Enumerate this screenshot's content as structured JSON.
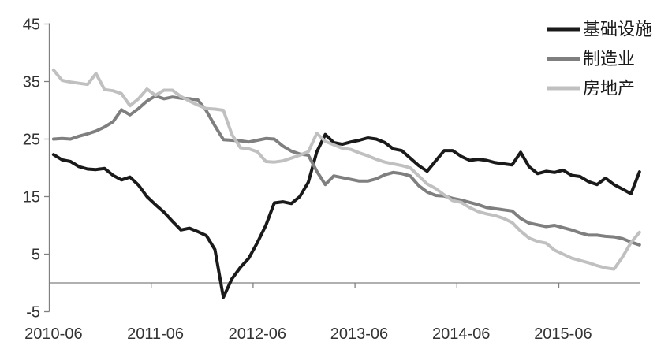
{
  "chart_data": {
    "type": "line",
    "title": "",
    "x_tick_labels": [
      "2010-06",
      "2011-06",
      "2012-06",
      "2013-06",
      "2014-06",
      "2015-06"
    ],
    "yticks": [
      45,
      35,
      25,
      15,
      5,
      -5
    ],
    "ylim": [
      -5,
      45
    ],
    "grid": false,
    "legend_position": "top-right",
    "axis_color": "#808080",
    "label_color": "#333333",
    "background_color": "#ffffff",
    "categories": [
      "2010-06",
      "2010-07",
      "2010-08",
      "2010-09",
      "2010-10",
      "2010-11",
      "2010-12",
      "2011-01",
      "2011-02",
      "2011-03",
      "2011-04",
      "2011-05",
      "2011-06",
      "2011-07",
      "2011-08",
      "2011-09",
      "2011-10",
      "2011-11",
      "2011-12",
      "2012-01",
      "2012-02",
      "2012-03",
      "2012-04",
      "2012-05",
      "2012-06",
      "2012-07",
      "2012-08",
      "2012-09",
      "2012-10",
      "2012-11",
      "2012-12",
      "2013-01",
      "2013-02",
      "2013-03",
      "2013-04",
      "2013-05",
      "2013-06",
      "2013-07",
      "2013-08",
      "2013-09",
      "2013-10",
      "2013-11",
      "2013-12",
      "2014-01",
      "2014-02",
      "2014-03",
      "2014-04",
      "2014-05",
      "2014-06",
      "2014-07",
      "2014-08",
      "2014-09",
      "2014-10",
      "2014-11",
      "2014-12",
      "2015-01",
      "2015-02",
      "2015-03",
      "2015-04",
      "2015-05",
      "2015-06",
      "2015-07",
      "2015-08",
      "2015-09",
      "2015-10",
      "2015-11",
      "2015-12",
      "2016-01",
      "2016-02",
      "2016-03"
    ],
    "series": [
      {
        "name": "基础设施",
        "key": "infrastructure",
        "color": "#1a1a1a",
        "line_width": 4,
        "values": [
          22.3,
          21.4,
          21.1,
          20.2,
          19.8,
          19.7,
          19.9,
          18.7,
          17.9,
          18.4,
          17.0,
          15.0,
          13.6,
          12.3,
          10.7,
          9.2,
          9.5,
          8.9,
          8.2,
          5.8,
          -2.5,
          0.7,
          2.7,
          4.3,
          7.0,
          10.0,
          13.9,
          14.1,
          13.8,
          15.0,
          17.5,
          22.8,
          25.8,
          24.4,
          24.1,
          24.5,
          24.8,
          25.2,
          25.0,
          24.4,
          23.3,
          23.0,
          21.7,
          20.4,
          19.4,
          21.2,
          23.0,
          23.0,
          22.0,
          21.3,
          21.5,
          21.3,
          20.9,
          20.7,
          20.5,
          22.7,
          20.2,
          19.0,
          19.4,
          19.2,
          19.6,
          18.7,
          18.5,
          17.6,
          17.1,
          18.2,
          17.1,
          16.3,
          15.5,
          19.3
        ]
      },
      {
        "name": "制造业",
        "key": "manufacturing",
        "color": "#7f7f7f",
        "line_width": 4,
        "values": [
          25.0,
          25.1,
          25.0,
          25.5,
          25.9,
          26.4,
          27.1,
          28.0,
          30.1,
          29.2,
          30.3,
          31.6,
          32.5,
          32.0,
          32.3,
          32.1,
          32.0,
          31.8,
          29.9,
          27.3,
          24.9,
          24.8,
          24.7,
          24.5,
          24.8,
          25.1,
          25.0,
          23.8,
          22.9,
          22.4,
          22.2,
          19.4,
          17.1,
          18.6,
          18.3,
          18.0,
          17.7,
          17.7,
          18.1,
          18.8,
          19.2,
          19.0,
          18.6,
          16.9,
          15.8,
          15.2,
          15.1,
          14.7,
          14.4,
          14.0,
          13.6,
          13.1,
          12.9,
          12.7,
          12.5,
          11.2,
          10.4,
          10.1,
          9.8,
          10.0,
          9.6,
          9.2,
          8.7,
          8.3,
          8.3,
          8.1,
          8.0,
          7.7,
          7.1,
          6.6
        ]
      },
      {
        "name": "房地产",
        "key": "real-estate",
        "color": "#c0c0c0",
        "line_width": 4,
        "values": [
          37.0,
          35.2,
          34.9,
          34.7,
          34.5,
          36.4,
          33.6,
          33.4,
          32.9,
          30.8,
          32.0,
          33.7,
          32.6,
          33.5,
          33.5,
          32.4,
          31.6,
          30.9,
          30.3,
          30.2,
          30.0,
          25.8,
          23.5,
          23.3,
          22.8,
          21.1,
          21.0,
          21.2,
          21.7,
          22.2,
          22.8,
          26.0,
          24.6,
          24.0,
          23.4,
          23.2,
          22.6,
          22.1,
          21.5,
          21.0,
          20.7,
          20.4,
          20.0,
          18.6,
          17.2,
          16.4,
          15.3,
          14.3,
          14.0,
          13.1,
          12.4,
          12.0,
          11.7,
          11.2,
          10.5,
          9.0,
          7.8,
          7.2,
          6.9,
          5.7,
          5.0,
          4.3,
          3.9,
          3.5,
          3.0,
          2.6,
          2.4,
          4.5,
          7.0,
          8.8
        ]
      }
    ]
  }
}
